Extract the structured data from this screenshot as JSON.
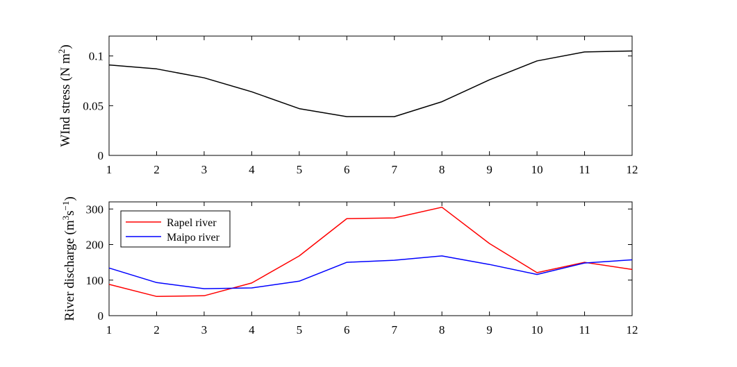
{
  "chart_data": [
    {
      "type": "line",
      "ylabel": "WInd stress (N m",
      "ylabel_sup": "2",
      "ylabel_end": ")",
      "x": [
        1,
        2,
        3,
        4,
        5,
        6,
        7,
        8,
        9,
        10,
        11,
        12
      ],
      "xlim": [
        1,
        12
      ],
      "ylim": [
        0,
        0.12
      ],
      "xticks": [
        "1",
        "2",
        "3",
        "4",
        "5",
        "6",
        "7",
        "8",
        "9",
        "10",
        "11",
        "12"
      ],
      "yticks": [
        {
          "v": 0,
          "label": "0"
        },
        {
          "v": 0.05,
          "label": "0.05"
        },
        {
          "v": 0.1,
          "label": "0.1"
        }
      ],
      "series": [
        {
          "color": "#000000",
          "values": [
            0.091,
            0.087,
            0.078,
            0.064,
            0.047,
            0.039,
            0.039,
            0.054,
            0.076,
            0.095,
            0.104,
            0.105
          ]
        }
      ],
      "grid": false
    },
    {
      "type": "line",
      "ylabel": "River discharge  (m",
      "ylabel_sup1": "3",
      "ylabel_mid": "s",
      "ylabel_sup2": "−1",
      "ylabel_end": ")",
      "x": [
        1,
        2,
        3,
        4,
        5,
        6,
        7,
        8,
        9,
        10,
        11,
        12
      ],
      "xlim": [
        1,
        12
      ],
      "ylim": [
        0,
        320
      ],
      "xticks": [
        "1",
        "2",
        "3",
        "4",
        "5",
        "6",
        "7",
        "8",
        "9",
        "10",
        "11",
        "12"
      ],
      "yticks": [
        {
          "v": 0,
          "label": "0"
        },
        {
          "v": 100,
          "label": "100"
        },
        {
          "v": 200,
          "label": "200"
        },
        {
          "v": 300,
          "label": "300"
        }
      ],
      "series": [
        {
          "name": "Rapel river",
          "color": "#ff0000",
          "values": [
            88,
            54,
            56,
            92,
            168,
            273,
            275,
            305,
            203,
            121,
            150,
            130
          ]
        },
        {
          "name": "Maipo river",
          "color": "#0000ff",
          "values": [
            134,
            93,
            76,
            78,
            97,
            150,
            156,
            168,
            144,
            116,
            148,
            157
          ]
        }
      ],
      "legend": "top-left",
      "grid": false
    }
  ]
}
